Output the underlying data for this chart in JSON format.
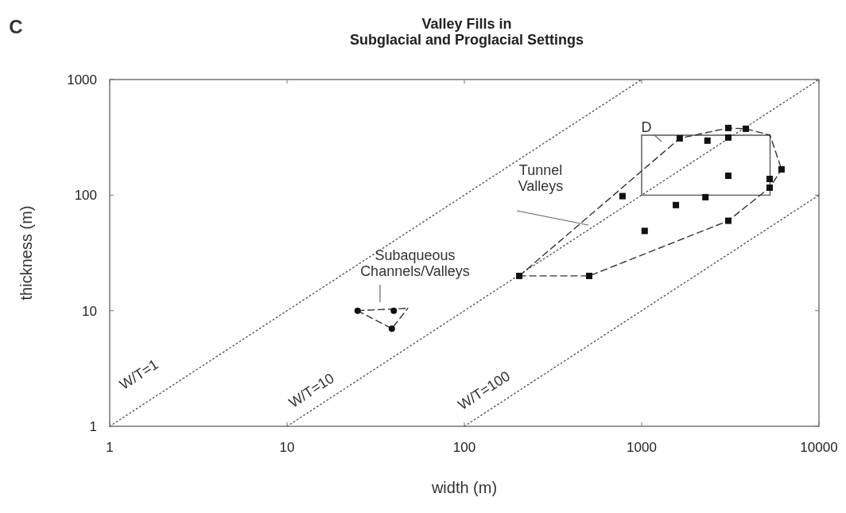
{
  "chart_data": {
    "type": "scatter",
    "title": "Valley Fills in\nSubglacial and Proglacial Settings",
    "xlabel": "width (m)",
    "ylabel": "thickness (m)",
    "log": "xy",
    "xlim": [
      1,
      10000
    ],
    "ylim": [
      1,
      1000
    ],
    "xticks": [
      1,
      10,
      100,
      1000,
      10000
    ],
    "yticks": [
      1,
      10,
      100,
      1000
    ],
    "grid": false,
    "series": [
      {
        "type": "line",
        "line_style": "dotted",
        "marker": "none",
        "color": "#555555",
        "x": [
          1,
          1000
        ],
        "values": [
          1,
          1000
        ]
      },
      {
        "type": "line",
        "line_style": "dotted",
        "marker": "none",
        "color": "#555555",
        "x": [
          10,
          10000
        ],
        "values": [
          1,
          1000
        ]
      },
      {
        "type": "line",
        "line_style": "dotted",
        "marker": "none",
        "color": "#555555",
        "x": [
          100,
          10000
        ],
        "values": [
          1,
          100
        ]
      },
      {
        "type": "line",
        "line_style": "solid",
        "marker": "none",
        "color": "#555555",
        "x": [
          1000,
          5300
        ],
        "values": [
          330,
          330
        ]
      },
      {
        "type": "line",
        "line_style": "solid",
        "marker": "none",
        "color": "#555555",
        "x": [
          1000,
          5300
        ],
        "values": [
          100,
          100
        ]
      },
      {
        "type": "line",
        "line_style": "solid",
        "marker": "none",
        "color": "#555555",
        "x": [
          1000,
          1000
        ],
        "values": [
          100,
          330
        ]
      },
      {
        "type": "line",
        "line_style": "solid",
        "marker": "none",
        "color": "#555555",
        "x": [
          5300,
          5300
        ],
        "values": [
          100,
          330
        ]
      },
      {
        "type": "line",
        "line_style": "dashed",
        "marker": "none",
        "color": "#333333",
        "x": [
          204,
          506,
          3080,
          5270,
          6150
        ],
        "values": [
          20,
          20,
          60,
          116,
          167
        ]
      },
      {
        "type": "line",
        "line_style": "dashed",
        "marker": "none",
        "color": "#333333",
        "x": [
          204,
          1640,
          3080,
          3870,
          5300,
          6150
        ],
        "values": [
          20,
          310,
          381,
          375,
          330,
          167
        ]
      },
      {
        "type": "line",
        "line_style": "dashed",
        "marker": "none",
        "color": "#333333",
        "x": [
          25,
          48
        ],
        "values": [
          10,
          10.5
        ]
      },
      {
        "type": "line",
        "line_style": "dashed",
        "marker": "none",
        "color": "#333333",
        "x": [
          25,
          39,
          48
        ],
        "values": [
          10,
          7,
          10.5
        ]
      },
      {
        "marker": "square",
        "color": "#111111",
        "x": [
          1640,
          2350,
          3080,
          3870,
          3080,
          6150,
          3080,
          5270,
          5270,
          2290,
          780,
          1560,
          1040,
          3080,
          204,
          506
        ],
        "values": [
          310,
          296,
          381,
          375,
          315,
          167,
          147,
          138,
          116,
          96,
          98,
          82,
          49,
          60,
          20,
          20
        ]
      },
      {
        "marker": "circle",
        "color": "#111111",
        "x": [
          25,
          40,
          39
        ],
        "values": [
          10,
          10,
          7
        ]
      }
    ],
    "annotations": [
      "C",
      "D",
      "Tunnel\nValleys",
      "Subaqueous\nChannels/Valleys",
      "W/T=1",
      "W/T=10",
      "W/T=100"
    ]
  }
}
